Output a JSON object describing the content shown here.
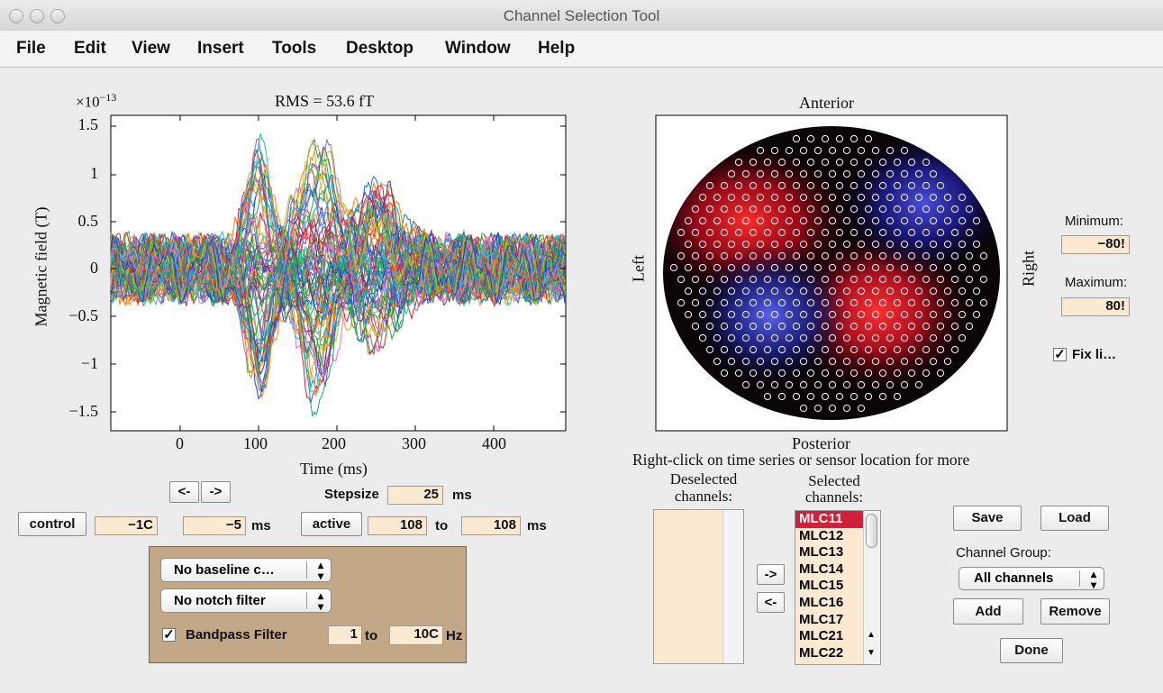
{
  "window": {
    "title": "Channel Selection Tool"
  },
  "menu": [
    "File",
    "Edit",
    "View",
    "Insert",
    "Tools",
    "Desktop",
    "Window",
    "Help"
  ],
  "plot": {
    "rms_label": "RMS = 53.6 fT",
    "ylabel": "Magnetic field (T)",
    "xlabel": "Time (ms)",
    "scale_base": "×10",
    "scale_exp": "−13",
    "yticks": [
      "1.5",
      "1",
      "0.5",
      "0",
      "−0.5",
      "−1",
      "−1.5"
    ],
    "xticks": [
      "0",
      "100",
      "200",
      "300",
      "400"
    ]
  },
  "topo": {
    "anterior": "Anterior",
    "posterior": "Posterior",
    "left": "Left",
    "right": "Right",
    "minimum_label": "Minimum:",
    "minimum_value": "−80!",
    "maximum_label": "Maximum:",
    "maximum_value": "80!",
    "fix_limits_label": "Fix li…"
  },
  "nav": {
    "prev": "<-",
    "next": "->",
    "stepsize_label": "Stepsize",
    "stepsize_value": "25",
    "stepsize_unit": "ms"
  },
  "control": {
    "label": "control",
    "from": "−1C",
    "to": "−5",
    "unit": "ms"
  },
  "active": {
    "label": "active",
    "from": "108",
    "to_label": "to",
    "to": "108",
    "unit": "ms"
  },
  "filters": {
    "baseline": "No baseline c…",
    "notch": "No notch filter",
    "bandpass_label": "Bandpass Filter",
    "bandpass_checked": true,
    "low": "1",
    "to_label": "to",
    "high": "10C",
    "unit": "Hz"
  },
  "channels": {
    "hint": "Right-click on time series or sensor location for more",
    "deselected_label_1": "Deselected",
    "deselected_label_2": "channels:",
    "selected_label_1": "Selected",
    "selected_label_2": "channels:",
    "move_right": "->",
    "move_left": "<-",
    "selected": [
      "MLC11",
      "MLC12",
      "MLC13",
      "MLC14",
      "MLC15",
      "MLC16",
      "MLC17",
      "MLC21",
      "MLC22"
    ]
  },
  "actions": {
    "save": "Save",
    "load": "Load",
    "group_label": "Channel Group:",
    "group_value": "All channels",
    "add": "Add",
    "remove": "Remove",
    "done": "Done"
  }
}
